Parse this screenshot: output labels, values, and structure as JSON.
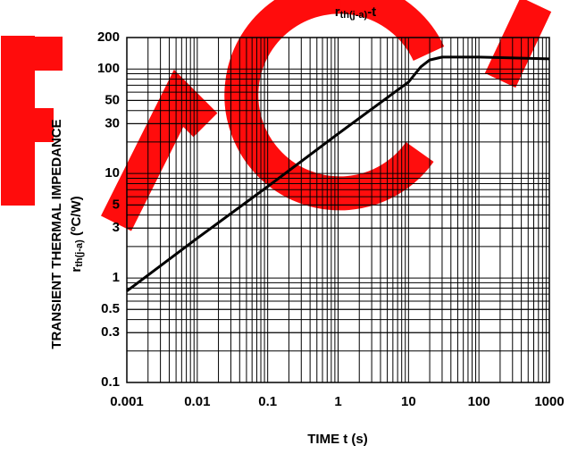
{
  "chart_data": {
    "type": "line",
    "title": {
      "main": "r",
      "sub": "th(j-a)",
      "tail": "-t"
    },
    "xlabel": "TIME t (s)",
    "ylabel": {
      "line1": "TRANSIENT THERMAL IMPEDANCE",
      "main": "r",
      "sub": "th(j-a)",
      "unit": " (ºC/W)"
    },
    "xscale": "log",
    "yscale": "log",
    "grid": true,
    "xlim": [
      0.001,
      1000
    ],
    "ylim": [
      0.1,
      200
    ],
    "xticks": [
      0.001,
      0.01,
      0.1,
      1,
      10,
      100,
      1000
    ],
    "yticks": [
      200,
      100,
      50,
      30,
      10,
      5,
      3,
      1,
      0.5,
      0.3,
      0.1
    ],
    "series": [
      {
        "color": "#000000",
        "x": [
          0.001,
          0.01,
          0.1,
          1,
          10,
          15,
          20,
          30,
          50,
          100,
          1000
        ],
        "values": [
          0.75,
          2.4,
          7.5,
          24,
          75,
          105,
          122,
          130,
          130,
          130,
          125
        ]
      }
    ]
  }
}
